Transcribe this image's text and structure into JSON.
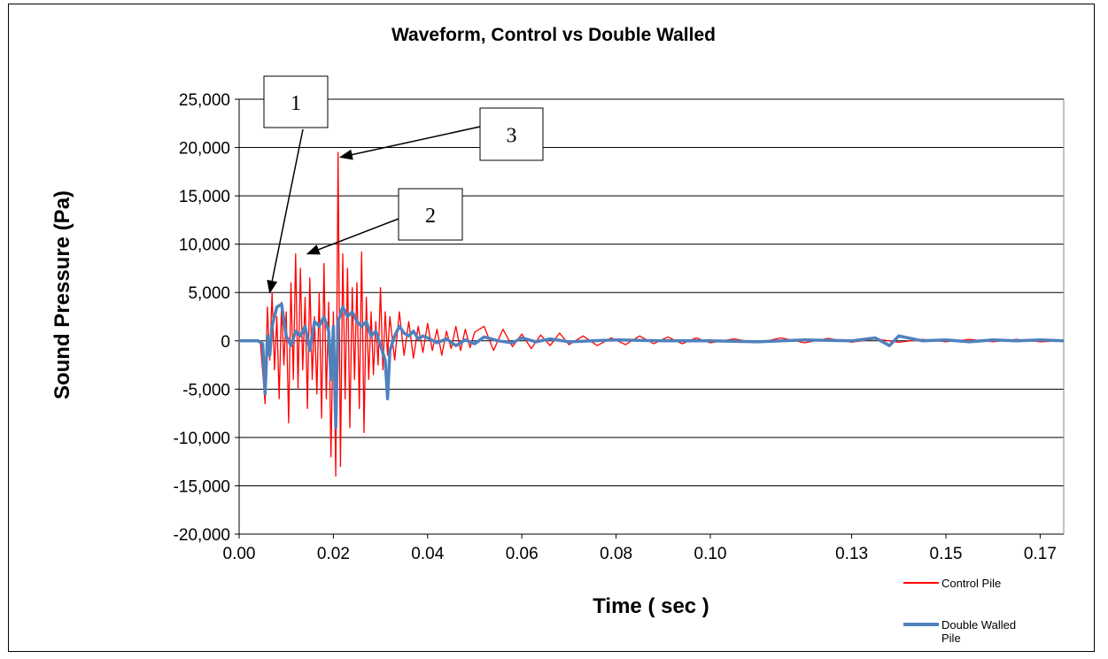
{
  "chart_data": {
    "type": "line",
    "title": "Waveform, Control vs Double Walled",
    "xlabel": "Time ( sec )",
    "ylabel": "Sound Pressure (Pa)",
    "xlim": [
      0.0,
      0.175
    ],
    "ylim": [
      -20000,
      25000
    ],
    "x_ticks": [
      0.0,
      0.02,
      0.04,
      0.06,
      0.08,
      0.1,
      0.13,
      0.15,
      0.17
    ],
    "x_tick_labels": [
      "0.00",
      "0.02",
      "0.04",
      "0.06",
      "0.08",
      "0.10",
      "0.13",
      "0.15",
      "0.17"
    ],
    "y_ticks": [
      -20000,
      -15000,
      -10000,
      -5000,
      0,
      5000,
      10000,
      15000,
      20000,
      25000
    ],
    "y_tick_labels": [
      "-20,000",
      "-15,000",
      "-10,000",
      "-5,000",
      "0",
      "5,000",
      "10,000",
      "15,000",
      "20,000",
      "25,000"
    ],
    "grid": "horizontal",
    "legend_position": "bottom-right",
    "series": [
      {
        "name": "Control Pile",
        "color": "#ff0000",
        "x": [
          0.0,
          0.0045,
          0.0055,
          0.006,
          0.0065,
          0.007,
          0.0075,
          0.008,
          0.0085,
          0.009,
          0.0095,
          0.01,
          0.0105,
          0.011,
          0.0115,
          0.012,
          0.0125,
          0.013,
          0.0135,
          0.014,
          0.0145,
          0.015,
          0.0155,
          0.016,
          0.0165,
          0.017,
          0.0175,
          0.018,
          0.0185,
          0.019,
          0.0195,
          0.02,
          0.0205,
          0.021,
          0.0215,
          0.022,
          0.0225,
          0.023,
          0.0235,
          0.024,
          0.0245,
          0.025,
          0.0255,
          0.026,
          0.0265,
          0.027,
          0.0275,
          0.028,
          0.0285,
          0.029,
          0.0295,
          0.03,
          0.0305,
          0.031,
          0.0315,
          0.032,
          0.033,
          0.034,
          0.035,
          0.036,
          0.037,
          0.038,
          0.039,
          0.04,
          0.041,
          0.042,
          0.043,
          0.044,
          0.045,
          0.046,
          0.047,
          0.048,
          0.049,
          0.05,
          0.052,
          0.054,
          0.056,
          0.058,
          0.06,
          0.062,
          0.064,
          0.066,
          0.068,
          0.07,
          0.073,
          0.076,
          0.079,
          0.082,
          0.085,
          0.088,
          0.091,
          0.094,
          0.097,
          0.1,
          0.105,
          0.11,
          0.115,
          0.12,
          0.125,
          0.13,
          0.135,
          0.14,
          0.145,
          0.15,
          0.155,
          0.16,
          0.165,
          0.17,
          0.175
        ],
        "values": [
          0,
          0,
          -6500,
          3500,
          -2000,
          5000,
          -3000,
          2500,
          -6000,
          4000,
          -2500,
          3000,
          -8500,
          6000,
          -4000,
          9000,
          -5000,
          7500,
          -3000,
          4500,
          -7000,
          6500,
          -4000,
          2500,
          -5500,
          5000,
          -8000,
          8000,
          -6000,
          4000,
          -12000,
          3000,
          -14000,
          19500,
          -13000,
          9000,
          -6000,
          7500,
          -9000,
          5500,
          -4000,
          6000,
          -7000,
          9200,
          -9500,
          4500,
          -4000,
          3000,
          -3500,
          2000,
          -2500,
          5500,
          -3000,
          3000,
          -1500,
          2500,
          -2000,
          3000,
          -1500,
          2000,
          -1800,
          1500,
          -1200,
          1800,
          -1000,
          1200,
          -1500,
          1000,
          -800,
          1500,
          -1000,
          1200,
          -700,
          900,
          1500,
          -1000,
          1200,
          -600,
          700,
          -800,
          600,
          -500,
          800,
          -400,
          500,
          -500,
          300,
          -400,
          500,
          -300,
          400,
          -300,
          300,
          -200,
          200,
          -200,
          300,
          -200,
          250,
          -150,
          200,
          -150,
          150,
          -100,
          150,
          -100,
          150,
          -100,
          0
        ]
      },
      {
        "name": "Double Walled Pile",
        "color": "#4f81bd",
        "x": [
          0.0,
          0.004,
          0.005,
          0.0055,
          0.006,
          0.0065,
          0.007,
          0.008,
          0.009,
          0.01,
          0.011,
          0.012,
          0.013,
          0.014,
          0.015,
          0.016,
          0.017,
          0.018,
          0.019,
          0.0195,
          0.02,
          0.0205,
          0.021,
          0.022,
          0.023,
          0.024,
          0.025,
          0.026,
          0.027,
          0.028,
          0.029,
          0.03,
          0.031,
          0.0315,
          0.032,
          0.033,
          0.034,
          0.035,
          0.036,
          0.037,
          0.038,
          0.039,
          0.04,
          0.042,
          0.044,
          0.046,
          0.048,
          0.05,
          0.052,
          0.055,
          0.058,
          0.06,
          0.063,
          0.066,
          0.07,
          0.075,
          0.08,
          0.09,
          0.1,
          0.11,
          0.12,
          0.13,
          0.135,
          0.138,
          0.14,
          0.145,
          0.15,
          0.155,
          0.16,
          0.165,
          0.17,
          0.175
        ],
        "values": [
          0,
          0,
          -300,
          -5500,
          500,
          -1500,
          1500,
          3500,
          3800,
          500,
          -500,
          1000,
          500,
          1500,
          -1000,
          2000,
          1500,
          2500,
          1000,
          -4000,
          1500,
          -9000,
          2000,
          3500,
          2500,
          3000,
          2000,
          1500,
          2000,
          500,
          1000,
          -500,
          -2000,
          -6000,
          -1000,
          500,
          1500,
          800,
          500,
          1000,
          200,
          500,
          300,
          -200,
          200,
          -500,
          100,
          -300,
          400,
          0,
          -200,
          300,
          -100,
          200,
          -100,
          0,
          100,
          0,
          0,
          -100,
          100,
          0,
          300,
          -500,
          500,
          0,
          100,
          -100,
          100,
          0,
          100,
          0
        ]
      }
    ],
    "annotations": [
      {
        "label": "1",
        "target_x": 0.0065,
        "target_y": 5000
      },
      {
        "label": "2",
        "target_x": 0.0145,
        "target_y": 9000
      },
      {
        "label": "3",
        "target_x": 0.0215,
        "target_y": 19000
      }
    ]
  }
}
